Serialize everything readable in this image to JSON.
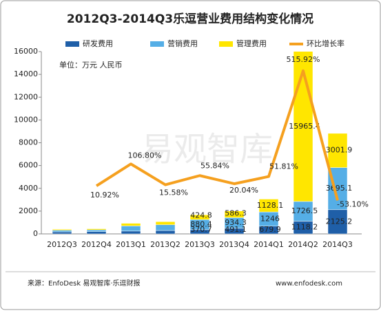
{
  "chart_data": {
    "type": "bar",
    "title": "2012Q3-2014Q3乐逗营业费用结构变化情况",
    "unit_note": "单位：万元 人民币",
    "watermark": "易观智库",
    "source": "来源：EnfoDesk 易观智库·乐逗财报",
    "website": "www.enfodesk.com",
    "categories": [
      "2012Q3",
      "2012Q4",
      "2013Q1",
      "2013Q2",
      "2013Q3",
      "2013Q4",
      "2014Q1",
      "2014Q2",
      "2014Q3"
    ],
    "stacked": true,
    "legend": "top",
    "series": [
      {
        "name": "研发费用",
        "color": "#1f5fa8",
        "values": [
          180,
          200,
          250,
          300,
          370.7,
          491.1,
          679.9,
          1118.2,
          2125.2
        ],
        "value_labels": [
          null,
          null,
          null,
          null,
          "370.7",
          "491.1",
          "679.9",
          "1118.2",
          "2125.2"
        ]
      },
      {
        "name": "营销费用",
        "color": "#55aee6",
        "values": [
          140,
          150,
          450,
          500,
          880.4,
          934.3,
          1246,
          1726.5,
          3695.1
        ],
        "value_labels": [
          null,
          null,
          null,
          null,
          "880.4",
          "934.3",
          "1246",
          "1726.5",
          "3695.1"
        ]
      },
      {
        "name": "管理费用",
        "color": "#ffe600",
        "values": [
          86,
          100,
          230,
          275,
          424.8,
          586.3,
          1128.1,
          15965.4,
          3001.9
        ],
        "value_labels": [
          null,
          null,
          null,
          null,
          "424.8",
          "586.3",
          "1128.1",
          "15965.4",
          "3001.9"
        ]
      },
      {
        "name": "环比增长率",
        "type": "line",
        "axis": "y2",
        "color": "#f5a01f",
        "values": [
          null,
          10.92,
          106.8,
          15.58,
          55.84,
          20.04,
          51.81,
          515.92,
          -53.1
        ],
        "value_labels": [
          null,
          "10.92%",
          "106.80%",
          "15.58%",
          "55.84%",
          "20.04%",
          "51.81%",
          "515.92%",
          "-53.10%"
        ]
      }
    ],
    "ylim": [
      0,
      16000
    ],
    "yticks": [
      0,
      2000,
      4000,
      6000,
      8000,
      10000,
      12000,
      14000,
      16000
    ],
    "y2lim": [
      -200,
      600
    ]
  }
}
